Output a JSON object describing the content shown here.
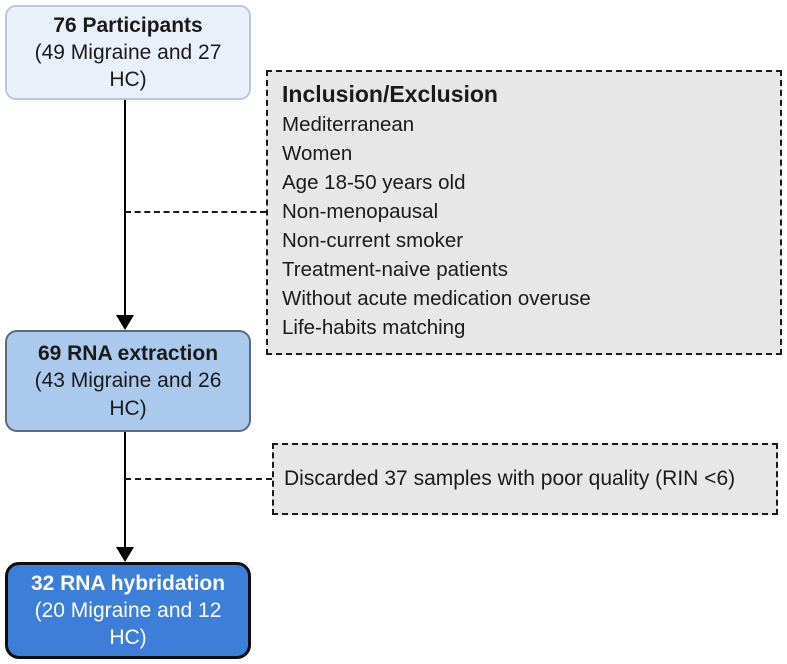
{
  "flow": {
    "participants": {
      "title": "76 Participants",
      "subtitle": "(49 Migraine and 27 HC)"
    },
    "extraction": {
      "title": "69 RNA extraction",
      "subtitle": "(43 Migraine and 26 HC)"
    },
    "hybridation": {
      "title": "32 RNA hybridation",
      "subtitle": "(20 Migraine and 12 HC)"
    }
  },
  "inclusion": {
    "title": "Inclusion/Exclusion",
    "items": [
      "Mediterranean",
      "Women",
      "Age 18-50 years old",
      "Non-menopausal",
      "Non-current smoker",
      "Treatment-naive patients",
      "Without acute medication overuse",
      "Life-habits matching"
    ]
  },
  "discarded": {
    "text": "Discarded 37 samples with poor quality (RIN <6)"
  },
  "colors": {
    "participants_fill": "#e9f0fa",
    "participants_border": "#b7c9de",
    "extraction_fill": "#abc9ec",
    "extraction_border": "#5b6b7d",
    "hybridation_fill": "#3c7ed8",
    "hybridation_border": "#0d0d0d",
    "hybridation_text": "#ffffff",
    "note_fill": "#e7e7e7",
    "note_border": "#1a1a1a",
    "connector": "#000000"
  }
}
